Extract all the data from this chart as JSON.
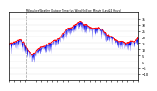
{
  "title": "Milwaukee Weather Outdoor Temp (vs) Wind Chill per Minute (Last 24 Hours)",
  "background_color": "#ffffff",
  "plot_bg_color": "#ffffff",
  "grid_color": "#aaaaaa",
  "blue_color": "#0000ee",
  "red_color": "#ff0000",
  "y_min": -15,
  "y_max": 40,
  "y_ticks": [
    35,
    30,
    25,
    20,
    15,
    10,
    5,
    0,
    -5,
    -10
  ],
  "n_points": 1440,
  "seed": 7
}
